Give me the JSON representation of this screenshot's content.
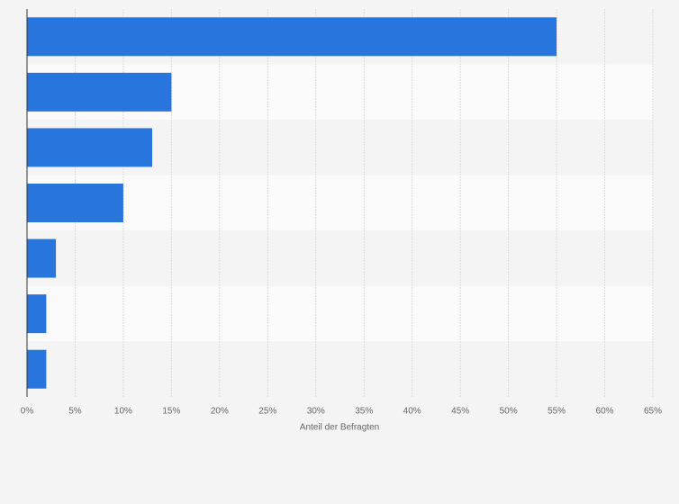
{
  "chart_data": {
    "type": "bar",
    "orientation": "horizontal",
    "categories": [
      null,
      null,
      null,
      null,
      null,
      null,
      null
    ],
    "values": [
      55,
      15,
      13,
      10,
      3,
      2,
      2
    ],
    "color": "#2876dd",
    "xlabel": "Anteil der Befragten",
    "xlim": [
      0,
      65
    ],
    "xticks": [
      {
        "value": 0,
        "label": "0%"
      },
      {
        "value": 5,
        "label": "5%"
      },
      {
        "value": 10,
        "label": "10%"
      },
      {
        "value": 15,
        "label": "15%"
      },
      {
        "value": 20,
        "label": "20%"
      },
      {
        "value": 25,
        "label": "25%"
      },
      {
        "value": 30,
        "label": "30%"
      },
      {
        "value": 35,
        "label": "35%"
      },
      {
        "value": 40,
        "label": "40%"
      },
      {
        "value": 45,
        "label": "45%"
      },
      {
        "value": 50,
        "label": "50%"
      },
      {
        "value": 55,
        "label": "55%"
      },
      {
        "value": 60,
        "label": "60%"
      },
      {
        "value": 65,
        "label": "65%"
      }
    ],
    "grid": true
  }
}
